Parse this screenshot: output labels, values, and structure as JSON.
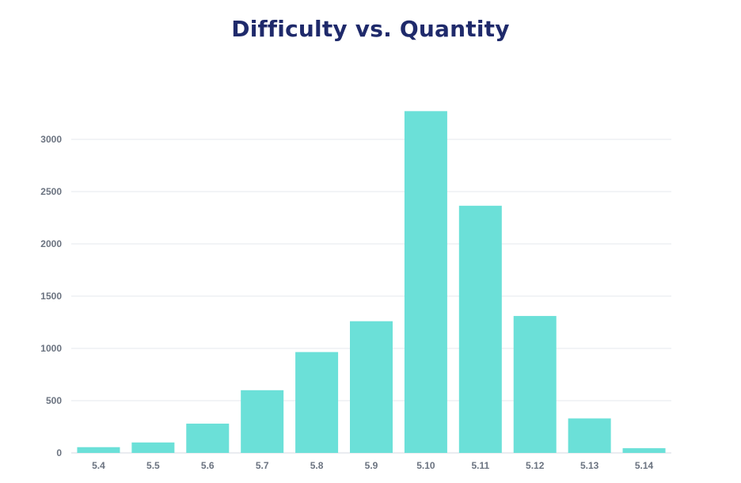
{
  "chart_data": {
    "type": "bar",
    "title": "Difficulty vs. Quantity",
    "xlabel": "",
    "ylabel": "",
    "categories": [
      "5.4",
      "5.5",
      "5.6",
      "5.7",
      "5.8",
      "5.9",
      "5.10",
      "5.11",
      "5.12",
      "5.13",
      "5.14"
    ],
    "values": [
      55,
      100,
      280,
      600,
      965,
      1260,
      3270,
      2365,
      1310,
      330,
      45
    ],
    "ylim": [
      0,
      3300
    ],
    "yticks": [
      0,
      500,
      1000,
      1500,
      2000,
      2500,
      3000
    ],
    "grid": true,
    "bar_color": "#6be0d8",
    "grid_color": "#e6e9ee",
    "title_color": "#1f2a6b",
    "tick_color": "#6b7380"
  }
}
